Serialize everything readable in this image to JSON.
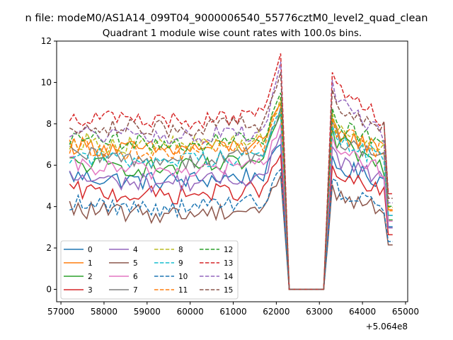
{
  "chart_data": {
    "type": "line",
    "suptitle": "n file: modeM0/AS1A14_099T04_9000006540_55776cztM0_level2_quad_clean",
    "title": "Quadrant 1 module wise count rates with 100.0s bins.",
    "xlabel": "",
    "ylabel": "",
    "x_offset_label": "+5.064e8",
    "xlim": [
      56900,
      65050
    ],
    "ylim": [
      -0.6,
      12.0
    ],
    "xticks": [
      57000,
      58000,
      59000,
      60000,
      61000,
      62000,
      63000,
      64000,
      65000
    ],
    "xtick_labels": [
      "57000",
      "58000",
      "59000",
      "60000",
      "61000",
      "62000",
      "63000",
      "64000",
      "65000"
    ],
    "yticks": [
      0,
      2,
      4,
      6,
      8,
      10,
      12
    ],
    "ytick_labels": [
      "0",
      "2",
      "4",
      "6",
      "8",
      "10",
      "12"
    ],
    "legend_position": "lower-left",
    "x_first": 57200,
    "x_step": 100,
    "series": [
      {
        "name": "0",
        "color": "#1f77b4",
        "dash": "solid",
        "level": 5.5,
        "peak": 7.0
      },
      {
        "name": "1",
        "color": "#ff7f0e",
        "dash": "solid",
        "level": 7.0,
        "peak": 9.0
      },
      {
        "name": "2",
        "color": "#2ca02c",
        "dash": "solid",
        "level": 6.1,
        "peak": 8.5
      },
      {
        "name": "3",
        "color": "#d62728",
        "dash": "solid",
        "level": 4.8,
        "peak": 6.5
      },
      {
        "name": "4",
        "color": "#9467bd",
        "dash": "solid",
        "level": 5.4,
        "peak": 7.5
      },
      {
        "name": "5",
        "color": "#8c564b",
        "dash": "solid",
        "level": 3.9,
        "peak": 5.5
      },
      {
        "name": "6",
        "color": "#e377c2",
        "dash": "solid",
        "level": 6.0,
        "peak": 8.0
      },
      {
        "name": "7",
        "color": "#7f7f7f",
        "dash": "solid",
        "level": 6.5,
        "peak": 8.8
      },
      {
        "name": "8",
        "color": "#bcbd22",
        "dash": "dashed",
        "level": 7.2,
        "peak": 9.3
      },
      {
        "name": "9",
        "color": "#17becf",
        "dash": "dashed",
        "level": 6.5,
        "peak": 8.6
      },
      {
        "name": "10",
        "color": "#1f77b4",
        "dash": "dashed",
        "level": 4.2,
        "peak": 5.8
      },
      {
        "name": "11",
        "color": "#ff7f0e",
        "dash": "dashed",
        "level": 6.9,
        "peak": 9.0
      },
      {
        "name": "12",
        "color": "#2ca02c",
        "dash": "dashed",
        "level": 7.3,
        "peak": 9.5
      },
      {
        "name": "13",
        "color": "#d62728",
        "dash": "dashed",
        "level": 8.4,
        "peak": 11.4
      },
      {
        "name": "14",
        "color": "#9467bd",
        "dash": "dashed",
        "level": 7.6,
        "peak": 11.0
      },
      {
        "name": "15",
        "color": "#8c564b",
        "dash": "dashed",
        "level": 8.0,
        "peak": 10.5
      }
    ]
  }
}
